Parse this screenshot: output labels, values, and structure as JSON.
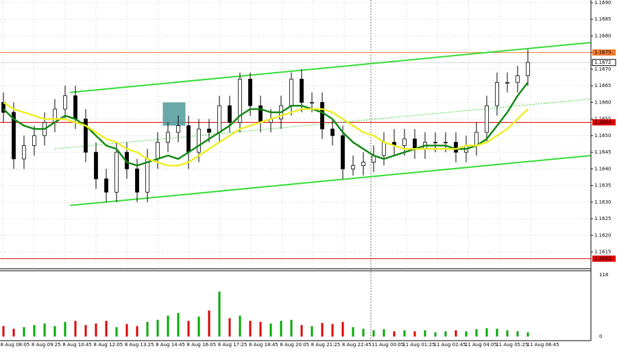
{
  "chart_data": {
    "type": "candlestick",
    "grid": true,
    "ylim": [
      1.16108,
      1.16908
    ],
    "yticks": [
      {
        "value": 1.169,
        "label": "1.1690"
      },
      1.1685,
      {
        "value": 1.168,
        "label": "1.1680"
      },
      1.1675,
      {
        "value": 1.167,
        "label": "1.1670"
      },
      1.1665,
      {
        "value": 1.166,
        "label": "1.1660"
      },
      1.1655,
      {
        "value": 1.165,
        "label": "1.1650"
      },
      1.1645,
      {
        "value": 1.164,
        "label": "1.1640"
      },
      1.1635,
      {
        "value": 1.163,
        "label": "1.1630"
      },
      1.1625,
      {
        "value": 1.162,
        "label": "1.1620"
      },
      1.1615
    ],
    "xlabels": [
      "8 Aug 08:05",
      "8 Aug 09:25",
      "8 Aug 10:45",
      "8 Aug 12:05",
      "8 Aug 13:25",
      "8 Aug 14:45",
      "8 Aug 16:05",
      "8 Aug 17:25",
      "8 Aug 18:45",
      "8 Aug 20:05",
      "8 Aug 21:25",
      "8 Aug 22:45",
      "11 Aug 00:05",
      "11 Aug 01:25",
      "11 Aug 02:45",
      "11 Aug 04:05",
      "11 Aug 05:25",
      "11 Aug 06:45"
    ],
    "up_color": "#ffffff",
    "down_color": "#000000",
    "open": [
      1.166,
      1.1657,
      1.1643,
      1.1647,
      1.165,
      1.1654,
      1.1658,
      1.1662,
      1.1655,
      1.1645,
      1.1637,
      1.1633,
      1.1645,
      1.164,
      1.1633,
      1.1643,
      1.1648,
      1.1651,
      1.1653,
      1.1645,
      1.1652,
      1.1651,
      1.1659,
      1.1654,
      1.1667,
      1.1659,
      1.1654,
      1.1655,
      1.1659,
      1.1667,
      1.166,
      1.166,
      1.1652,
      1.165,
      1.164,
      1.1641,
      1.1642,
      1.1644,
      1.1648,
      1.1647,
      1.1649,
      1.1646,
      1.1648,
      1.1648,
      1.1648,
      1.1645,
      1.1647,
      1.1651,
      1.1659,
      1.1666,
      1.1666,
      1.1668
    ],
    "high": [
      1.1663,
      1.166,
      1.165,
      1.1653,
      1.1657,
      1.1661,
      1.1665,
      1.1665,
      1.1658,
      1.1648,
      1.164,
      1.1648,
      1.1648,
      1.1643,
      1.1646,
      1.1651,
      1.1654,
      1.1656,
      1.1656,
      1.1655,
      1.1655,
      1.1662,
      1.1662,
      1.1669,
      1.1669,
      1.1662,
      1.1658,
      1.1662,
      1.1669,
      1.167,
      1.1663,
      1.1663,
      1.1655,
      1.1653,
      1.1644,
      1.1645,
      1.1647,
      1.1651,
      1.1652,
      1.1652,
      1.1652,
      1.1651,
      1.1651,
      1.1651,
      1.1651,
      1.165,
      1.1654,
      1.1662,
      1.1669,
      1.1669,
      1.1671,
      1.1676
    ],
    "low": [
      1.1654,
      1.164,
      1.164,
      1.1644,
      1.1647,
      1.1651,
      1.1655,
      1.1652,
      1.1642,
      1.1634,
      1.163,
      1.163,
      1.1637,
      1.163,
      1.163,
      1.164,
      1.1645,
      1.1648,
      1.164,
      1.1642,
      1.1648,
      1.1648,
      1.1651,
      1.1651,
      1.1656,
      1.1651,
      1.1651,
      1.1652,
      1.1656,
      1.1657,
      1.1657,
      1.1649,
      1.1647,
      1.1637,
      1.1638,
      1.1638,
      1.1639,
      1.1641,
      1.1644,
      1.1644,
      1.1643,
      1.1643,
      1.1645,
      1.1645,
      1.1642,
      1.1642,
      1.1644,
      1.1648,
      1.1656,
      1.1663,
      1.1663,
      1.1665
    ],
    "close": [
      1.1657,
      1.1643,
      1.1647,
      1.165,
      1.1654,
      1.1658,
      1.1662,
      1.1655,
      1.1645,
      1.1637,
      1.1633,
      1.1645,
      1.164,
      1.1633,
      1.1643,
      1.1648,
      1.1651,
      1.1653,
      1.1645,
      1.1652,
      1.1651,
      1.1659,
      1.1654,
      1.1667,
      1.1659,
      1.1654,
      1.1655,
      1.1659,
      1.1667,
      1.166,
      1.166,
      1.1652,
      1.165,
      1.164,
      1.1641,
      1.1642,
      1.1644,
      1.1648,
      1.1647,
      1.1649,
      1.1646,
      1.1648,
      1.1648,
      1.1648,
      1.1645,
      1.1647,
      1.1651,
      1.1659,
      1.1666,
      1.1666,
      1.1668,
      1.1672
    ],
    "series": [
      {
        "color": "#118811",
        "values": [
          1.1658,
          1.1655,
          1.1653,
          1.1652,
          1.1652,
          1.1654,
          1.1656,
          1.1655,
          1.1653,
          1.165,
          1.1647,
          1.1646,
          1.1642,
          1.1641,
          1.1642,
          1.1643,
          1.1644,
          1.1643,
          1.1645,
          1.1647,
          1.1649,
          1.1651,
          1.1653,
          1.1656,
          1.1658,
          1.1658,
          1.1657,
          1.1657,
          1.1659,
          1.1659,
          1.1658,
          1.1657,
          1.1655,
          1.1651,
          1.1648,
          1.1646,
          1.1644,
          1.1643,
          1.1644,
          1.1645,
          1.1646,
          1.1647,
          1.1647,
          1.1647,
          1.1646,
          1.1646,
          1.1647,
          1.1649,
          1.1653,
          1.1657,
          1.1662,
          1.1666
        ]
      },
      {
        "color": "#eeee22",
        "values": [
          1.166,
          1.1658,
          1.1657,
          1.1656,
          1.1655,
          1.1655,
          1.1655,
          1.1654,
          1.1653,
          1.1651,
          1.1649,
          1.1648,
          1.1646,
          1.1645,
          1.1643,
          1.1642,
          1.1641,
          1.1641,
          1.1642,
          1.1644,
          1.1646,
          1.1648,
          1.165,
          1.1652,
          1.1653,
          1.1654,
          1.1655,
          1.1656,
          1.1657,
          1.1658,
          1.1658,
          1.1658,
          1.1657,
          1.1655,
          1.1653,
          1.1651,
          1.165,
          1.1648,
          1.1647,
          1.1646,
          1.1646,
          1.1646,
          1.1646,
          1.1646,
          1.1646,
          1.1647,
          1.1647,
          1.1648,
          1.165,
          1.1652,
          1.1655,
          1.1658
        ]
      }
    ],
    "levels": [
      {
        "value": 1.1675,
        "color": "#f07830"
      },
      {
        "value": 1.1672,
        "color": "#000000"
      },
      {
        "value": 1.1654,
        "color": "#dd0000"
      },
      {
        "value": 1.1613,
        "color": "#dd0000"
      }
    ],
    "trendlines": [
      {
        "color": "#33dd33",
        "x": [
          6.5,
          57.1
        ],
        "y": [
          1.1663,
          1.1678
        ]
      },
      {
        "color": "#33dd33",
        "x": [
          6.5,
          57.1
        ],
        "y": [
          1.1629,
          1.1644
        ]
      },
      {
        "color": "#33dd33",
        "dotted": true,
        "x": [
          5,
          57.1
        ],
        "y": [
          1.1646,
          1.1661
        ]
      }
    ],
    "zone": {
      "color": "#4f9a9a",
      "x": [
        15.5,
        17.7
      ],
      "y": [
        1.166,
        1.1653
      ]
    },
    "volume": {
      "ylim": [
        0,
        118
      ],
      "yticks": [
        0,
        118
      ],
      "up_color": "#00aa00",
      "down_color": "#dd0000",
      "values": [
        20,
        15,
        18,
        22,
        25,
        20,
        28,
        30,
        22,
        25,
        30,
        18,
        24,
        20,
        28,
        32,
        40,
        45,
        30,
        38,
        50,
        86,
        35,
        40,
        30,
        28,
        25,
        30,
        32,
        22,
        20,
        26,
        24,
        28,
        18,
        15,
        12,
        14,
        10,
        12,
        10,
        12,
        8,
        10,
        12,
        10,
        14,
        16,
        15,
        12,
        10,
        8
      ]
    }
  }
}
